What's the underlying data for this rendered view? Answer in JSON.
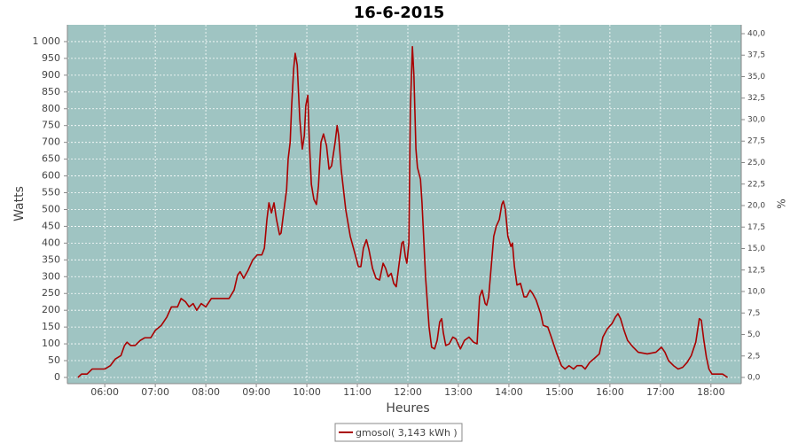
{
  "chart_data": {
    "type": "line",
    "title": "16-6-2015",
    "x_label": "Heures",
    "y_label": "Watts",
    "y2_label": "%",
    "x": [
      5.47,
      5.54,
      5.65,
      5.75,
      6.0,
      6.11,
      6.21,
      6.32,
      6.39,
      6.44,
      6.51,
      6.6,
      6.7,
      6.79,
      6.91,
      7.0,
      7.12,
      7.23,
      7.32,
      7.44,
      7.51,
      7.6,
      7.67,
      7.75,
      7.82,
      7.91,
      8.0,
      8.11,
      8.32,
      8.46,
      8.56,
      8.63,
      8.68,
      8.75,
      8.84,
      8.93,
      9.02,
      9.11,
      9.16,
      9.21,
      9.25,
      9.3,
      9.35,
      9.4,
      9.46,
      9.49,
      9.54,
      9.6,
      9.63,
      9.67,
      9.7,
      9.74,
      9.77,
      9.81,
      9.86,
      9.91,
      9.95,
      9.98,
      10.02,
      10.05,
      10.09,
      10.14,
      10.19,
      10.23,
      10.28,
      10.33,
      10.39,
      10.44,
      10.49,
      10.56,
      10.6,
      10.63,
      10.68,
      10.77,
      10.86,
      10.95,
      11.02,
      11.07,
      11.12,
      11.18,
      11.23,
      11.3,
      11.37,
      11.44,
      11.51,
      11.56,
      11.61,
      11.67,
      11.72,
      11.77,
      11.82,
      11.88,
      11.91,
      11.95,
      11.98,
      12.02,
      12.05,
      12.09,
      12.12,
      12.16,
      12.19,
      12.25,
      12.28,
      12.35,
      12.42,
      12.47,
      12.53,
      12.58,
      12.63,
      12.67,
      12.7,
      12.75,
      12.82,
      12.89,
      12.95,
      13.04,
      13.12,
      13.21,
      13.3,
      13.37,
      13.42,
      13.47,
      13.53,
      13.56,
      13.6,
      13.65,
      13.7,
      13.75,
      13.81,
      13.86,
      13.89,
      13.93,
      13.98,
      14.04,
      14.07,
      14.11,
      14.16,
      14.23,
      14.3,
      14.35,
      14.42,
      14.47,
      14.54,
      14.63,
      14.68,
      14.77,
      14.84,
      14.95,
      15.04,
      15.11,
      15.19,
      15.28,
      15.35,
      15.44,
      15.51,
      15.6,
      15.68,
      15.79,
      15.86,
      15.95,
      16.04,
      16.11,
      16.16,
      16.21,
      16.28,
      16.35,
      16.46,
      16.56,
      16.74,
      16.91,
      17.02,
      17.09,
      17.16,
      17.26,
      17.35,
      17.44,
      17.53,
      17.61,
      17.7,
      17.77,
      17.81,
      17.86,
      17.91,
      17.96,
      18.02,
      18.07,
      18.23,
      18.33
    ],
    "series": [
      {
        "name": "gmosol( 3,143 kWh )",
        "color": "#aa0000",
        "values": [
          0,
          10,
          10,
          25,
          25,
          35,
          55,
          65,
          95,
          105,
          95,
          95,
          110,
          118,
          118,
          140,
          155,
          180,
          210,
          210,
          235,
          225,
          210,
          220,
          200,
          220,
          210,
          235,
          235,
          235,
          260,
          305,
          315,
          295,
          320,
          350,
          365,
          365,
          385,
          470,
          520,
          490,
          520,
          470,
          425,
          430,
          490,
          560,
          650,
          700,
          810,
          920,
          965,
          930,
          770,
          680,
          720,
          810,
          840,
          700,
          575,
          530,
          515,
          570,
          700,
          725,
          690,
          620,
          630,
          700,
          750,
          720,
          620,
          500,
          420,
          370,
          330,
          330,
          385,
          410,
          380,
          325,
          295,
          290,
          340,
          325,
          300,
          310,
          280,
          270,
          330,
          400,
          405,
          360,
          340,
          400,
          800,
          985,
          900,
          680,
          625,
          590,
          520,
          300,
          150,
          90,
          85,
          110,
          165,
          175,
          135,
          95,
          100,
          120,
          115,
          85,
          110,
          120,
          105,
          100,
          240,
          260,
          220,
          215,
          240,
          330,
          420,
          450,
          470,
          515,
          525,
          500,
          420,
          390,
          400,
          330,
          275,
          280,
          240,
          240,
          260,
          250,
          230,
          190,
          155,
          150,
          120,
          70,
          35,
          25,
          35,
          25,
          35,
          35,
          25,
          45,
          55,
          70,
          120,
          145,
          160,
          180,
          190,
          175,
          140,
          110,
          90,
          75,
          70,
          75,
          90,
          75,
          50,
          35,
          25,
          30,
          45,
          65,
          105,
          175,
          170,
          110,
          60,
          25,
          10,
          10,
          10,
          0
        ]
      }
    ],
    "xlim": [
      5.26,
      18.6
    ],
    "xticks": [
      {
        "value": 6,
        "label": "06:00"
      },
      {
        "value": 7,
        "label": "07:00"
      },
      {
        "value": 8,
        "label": "08:00"
      },
      {
        "value": 9,
        "label": "09:00"
      },
      {
        "value": 10,
        "label": "10:00"
      },
      {
        "value": 11,
        "label": "11:00"
      },
      {
        "value": 12,
        "label": "12:00"
      },
      {
        "value": 13,
        "label": "13:00"
      },
      {
        "value": 14,
        "label": "14:00"
      },
      {
        "value": 15,
        "label": "15:00"
      },
      {
        "value": 16,
        "label": "16:00"
      },
      {
        "value": 17,
        "label": "17:00"
      },
      {
        "value": 18,
        "label": "18:00"
      }
    ],
    "ylim": [
      -18.5,
      1050
    ],
    "yticks": [
      0,
      50,
      100,
      150,
      200,
      250,
      300,
      350,
      400,
      450,
      500,
      550,
      600,
      650,
      700,
      750,
      800,
      850,
      900,
      950,
      {
        "value": 1000,
        "label": "1 000"
      }
    ],
    "y2lim": [
      -0.72,
      41.03
    ],
    "y2ticks": [
      {
        "value": 0,
        "label": "0,0"
      },
      {
        "value": 2.5,
        "label": "2,5"
      },
      {
        "value": 5,
        "label": "5,0"
      },
      {
        "value": 7.5,
        "label": "7,5"
      },
      {
        "value": 10,
        "label": "10,0"
      },
      {
        "value": 12.5,
        "label": "12,5"
      },
      {
        "value": 15,
        "label": "15,0"
      },
      {
        "value": 17.5,
        "label": "17,5"
      },
      {
        "value": 20,
        "label": "20,0"
      },
      {
        "value": 22.5,
        "label": "22,5"
      },
      {
        "value": 25,
        "label": "25,0"
      },
      {
        "value": 27.5,
        "label": "27,5"
      },
      {
        "value": 30,
        "label": "30,0"
      },
      {
        "value": 32.5,
        "label": "32,5"
      },
      {
        "value": 35,
        "label": "35,0"
      },
      {
        "value": 37.5,
        "label": "37,5"
      },
      {
        "value": 40,
        "label": "40,0"
      }
    ],
    "grid": true,
    "plot_background": "#9fc4c2",
    "legend": "bottom"
  }
}
